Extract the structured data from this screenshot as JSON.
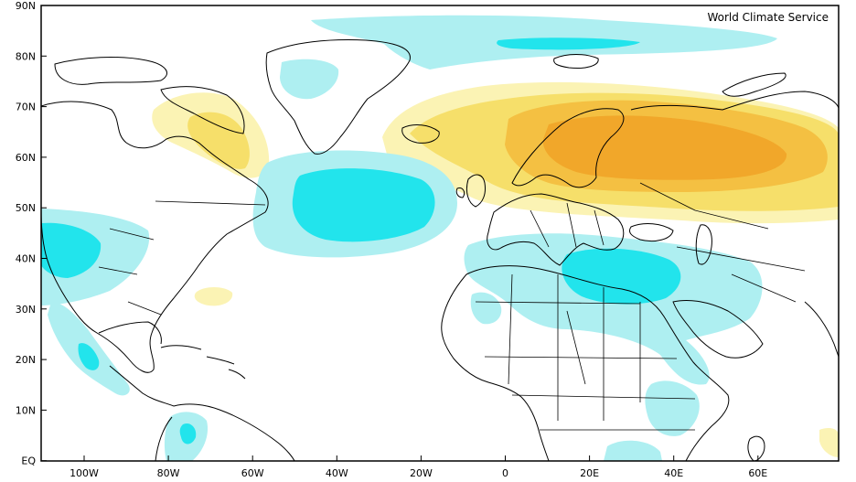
{
  "map": {
    "credit": "World Climate Service",
    "lat_labels": [
      "90N",
      "80N",
      "70N",
      "60N",
      "50N",
      "40N",
      "30N",
      "20N",
      "10N",
      "EQ"
    ],
    "lon_labels": [
      "100W",
      "80W",
      "60W",
      "40W",
      "20W",
      "0",
      "20E",
      "40E",
      "60E"
    ],
    "colors": {
      "background": "#ffffff",
      "land_outline": "#000000",
      "pale_yellow": "#fbf3b4",
      "yellow": "#f6df6a",
      "gold": "#f4c042",
      "orange": "#f1a72a",
      "pale_cyan": "#aeeff1",
      "cyan": "#22e4ec"
    },
    "icons": [
      "coastline-outline",
      "anomaly-shading"
    ]
  }
}
